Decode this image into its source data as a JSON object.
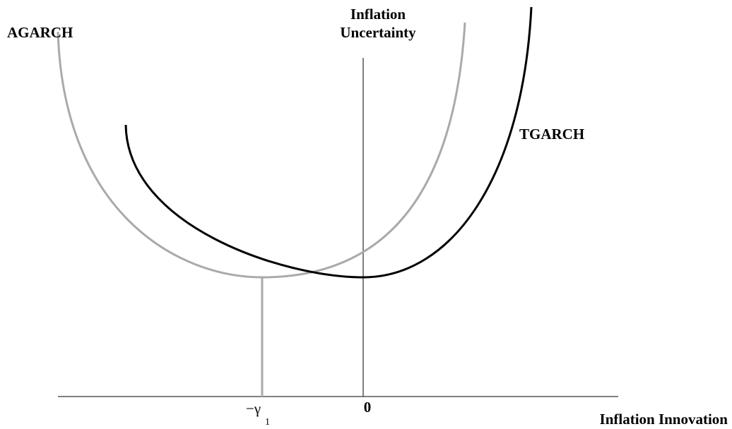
{
  "axes": {
    "y_label": [
      "Inflation",
      "Uncertainty"
    ],
    "x_label": "Inflation Innovation",
    "origin_label": "0"
  },
  "curves": [
    {
      "label": "AGARCH"
    },
    {
      "label": "TGARCH"
    }
  ],
  "marker": {
    "label": "−γ",
    "subscript": "1"
  }
}
